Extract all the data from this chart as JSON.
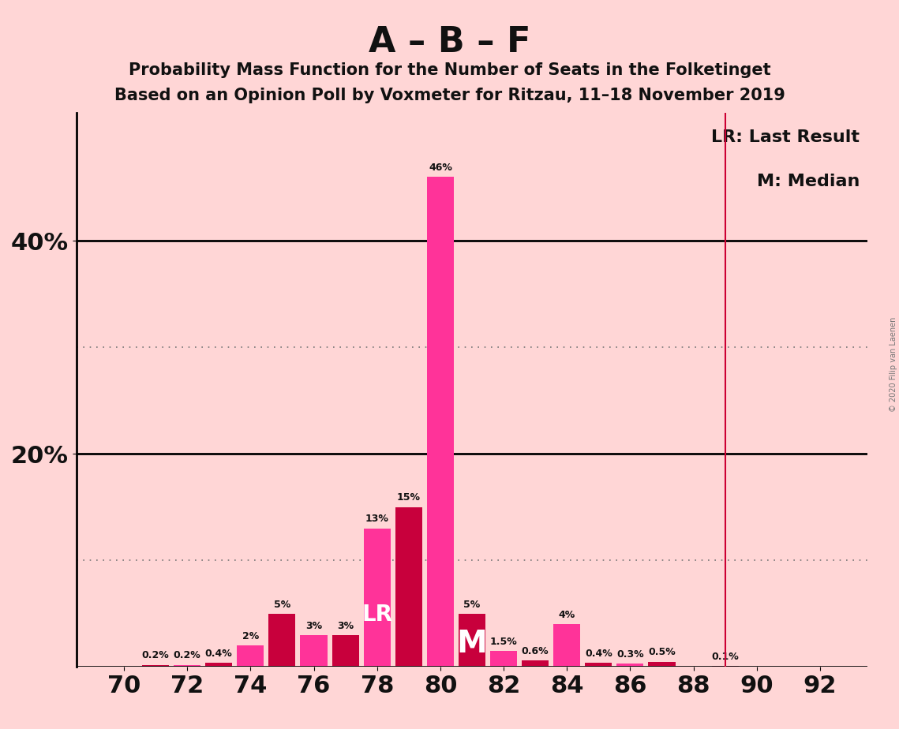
{
  "title_main": "A – B – F",
  "title_sub1": "Probability Mass Function for the Number of Seats in the Folketinget",
  "title_sub2": "Based on an Opinion Poll by Voxmeter for Ritzau, 11–18 November 2019",
  "copyright": "© 2020 Filip van Laenen",
  "seats": [
    70,
    71,
    72,
    73,
    74,
    75,
    76,
    77,
    78,
    79,
    80,
    81,
    82,
    83,
    84,
    85,
    86,
    87,
    88,
    89,
    90,
    91,
    92
  ],
  "values": [
    0.0,
    0.2,
    0.2,
    0.4,
    2.0,
    5.0,
    3.0,
    3.0,
    13.0,
    15.0,
    46.0,
    5.0,
    1.5,
    0.6,
    4.0,
    0.4,
    0.3,
    0.5,
    0.0,
    0.1,
    0.0,
    0.0,
    0.0
  ],
  "bar_colors": [
    "#FF3399",
    "#C8003C",
    "#FF3399",
    "#C8003C",
    "#FF3399",
    "#C8003C",
    "#FF3399",
    "#C8003C",
    "#FF3399",
    "#C8003C",
    "#FF3399",
    "#C8003C",
    "#FF3399",
    "#C8003C",
    "#FF3399",
    "#C8003C",
    "#FF3399",
    "#C8003C",
    "#FF3399",
    "#C8003C",
    "#FF3399",
    "#C8003C",
    "#FF3399"
  ],
  "lr_x": 89,
  "median_x": 81,
  "lr_bar_x": 78,
  "lr_color": "#CC0033",
  "background_color": "#FFD6D6",
  "text_color": "#111111",
  "ylim": [
    0,
    52
  ],
  "xlabel_ticks": [
    70,
    72,
    74,
    76,
    78,
    80,
    82,
    84,
    86,
    88,
    90,
    92
  ],
  "label_fontsize": 9,
  "tick_fontsize": 22,
  "title_fontsize": 32,
  "sub_fontsize": 15,
  "legend_fontsize": 16
}
